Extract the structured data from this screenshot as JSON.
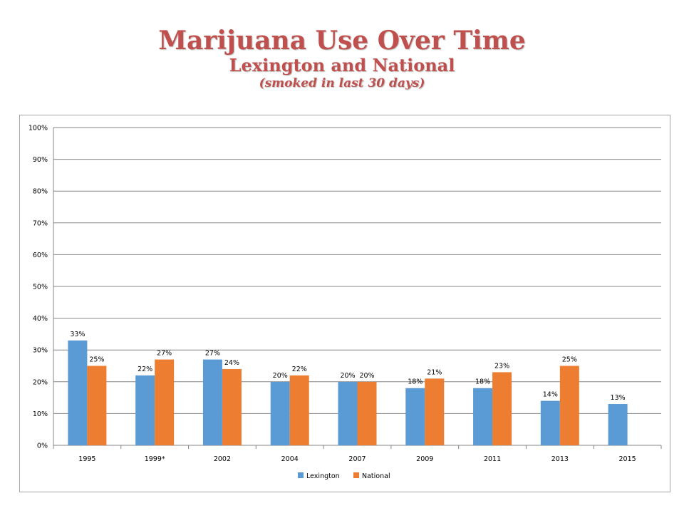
{
  "title": "Marijuana Use Over Time",
  "subtitle": "Lexington and National",
  "note": "(smoked in last 30 days)",
  "chart_data": {
    "type": "bar",
    "categories": [
      "1995",
      "1999*",
      "2002",
      "2004",
      "2007",
      "2009",
      "2011",
      "2013",
      "2015"
    ],
    "series": [
      {
        "name": "Lexington",
        "color": "#5b9bd5",
        "values": [
          33,
          22,
          27,
          20,
          20,
          18,
          18,
          14,
          13
        ]
      },
      {
        "name": "National",
        "color": "#ed7d31",
        "values": [
          25,
          27,
          24,
          22,
          20,
          21,
          23,
          25,
          null
        ]
      }
    ],
    "ylim": [
      0,
      100
    ],
    "yticks": [
      0,
      10,
      20,
      30,
      40,
      50,
      60,
      70,
      80,
      90,
      100
    ],
    "ytick_labels": [
      "0%",
      "10%",
      "20%",
      "30%",
      "40%",
      "50%",
      "60%",
      "70%",
      "80%",
      "90%",
      "100%"
    ],
    "value_labels": [
      [
        "33%",
        "22%",
        "27%",
        "20%",
        "20%",
        "18%",
        "18%",
        "14%",
        "13%"
      ],
      [
        "25%",
        "27%",
        "24%",
        "22%",
        "20%",
        "21%",
        "23%",
        "25%",
        null
      ]
    ],
    "grid": true,
    "legend": "bottom"
  }
}
